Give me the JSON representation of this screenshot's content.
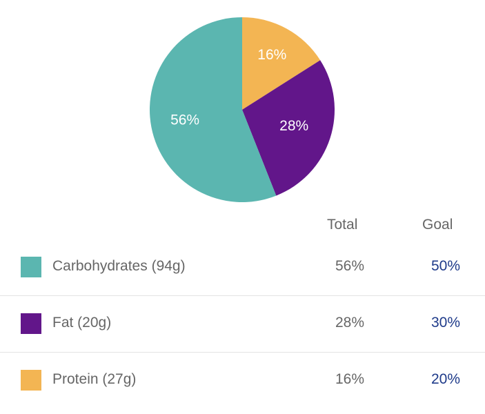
{
  "chart_data": {
    "type": "pie",
    "slices": [
      {
        "label": "16%",
        "value": 16,
        "color": "#f3b553"
      },
      {
        "label": "28%",
        "value": 28,
        "color": "#62168a"
      },
      {
        "label": "56%",
        "value": 56,
        "color": "#5bb6b0"
      }
    ]
  },
  "table": {
    "total_header": "Total",
    "goal_header": "Goal",
    "rows": [
      {
        "label": "Carbohydrates (94g)",
        "total": "56%",
        "goal": "50%",
        "color": "#5bb6b0"
      },
      {
        "label": "Fat (20g)",
        "total": "28%",
        "goal": "30%",
        "color": "#62168a"
      },
      {
        "label": "Protein (27g)",
        "total": "16%",
        "goal": "20%",
        "color": "#f3b553"
      }
    ]
  }
}
